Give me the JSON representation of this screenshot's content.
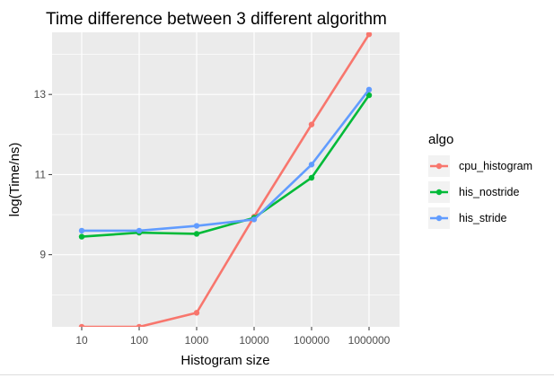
{
  "chart_data": {
    "type": "line",
    "title": "Time difference between 3 different algorithm",
    "xlabel": "Histogram size",
    "ylabel": "log(Time/ns)",
    "x_scale": "log10",
    "x": [
      10,
      100,
      1000,
      10000,
      100000,
      1000000
    ],
    "x_tick_labels": [
      "10",
      "100",
      "1000",
      "10000",
      "100000",
      "1000000"
    ],
    "y_ticks": [
      9,
      11,
      13
    ],
    "ylim": [
      7.2,
      14.55
    ],
    "grid": true,
    "legend": {
      "title": "algo",
      "placement": "right"
    },
    "series": [
      {
        "name": "cpu_histogram",
        "color": "#F8766D",
        "values": [
          7.2,
          7.2,
          7.55,
          9.95,
          12.25,
          14.5
        ]
      },
      {
        "name": "his_nostride",
        "color": "#00BA38",
        "values": [
          9.45,
          9.55,
          9.52,
          9.92,
          10.92,
          12.98
        ]
      },
      {
        "name": "his_stride",
        "color": "#619CFF",
        "values": [
          9.6,
          9.6,
          9.72,
          9.88,
          11.25,
          13.12
        ]
      }
    ]
  }
}
